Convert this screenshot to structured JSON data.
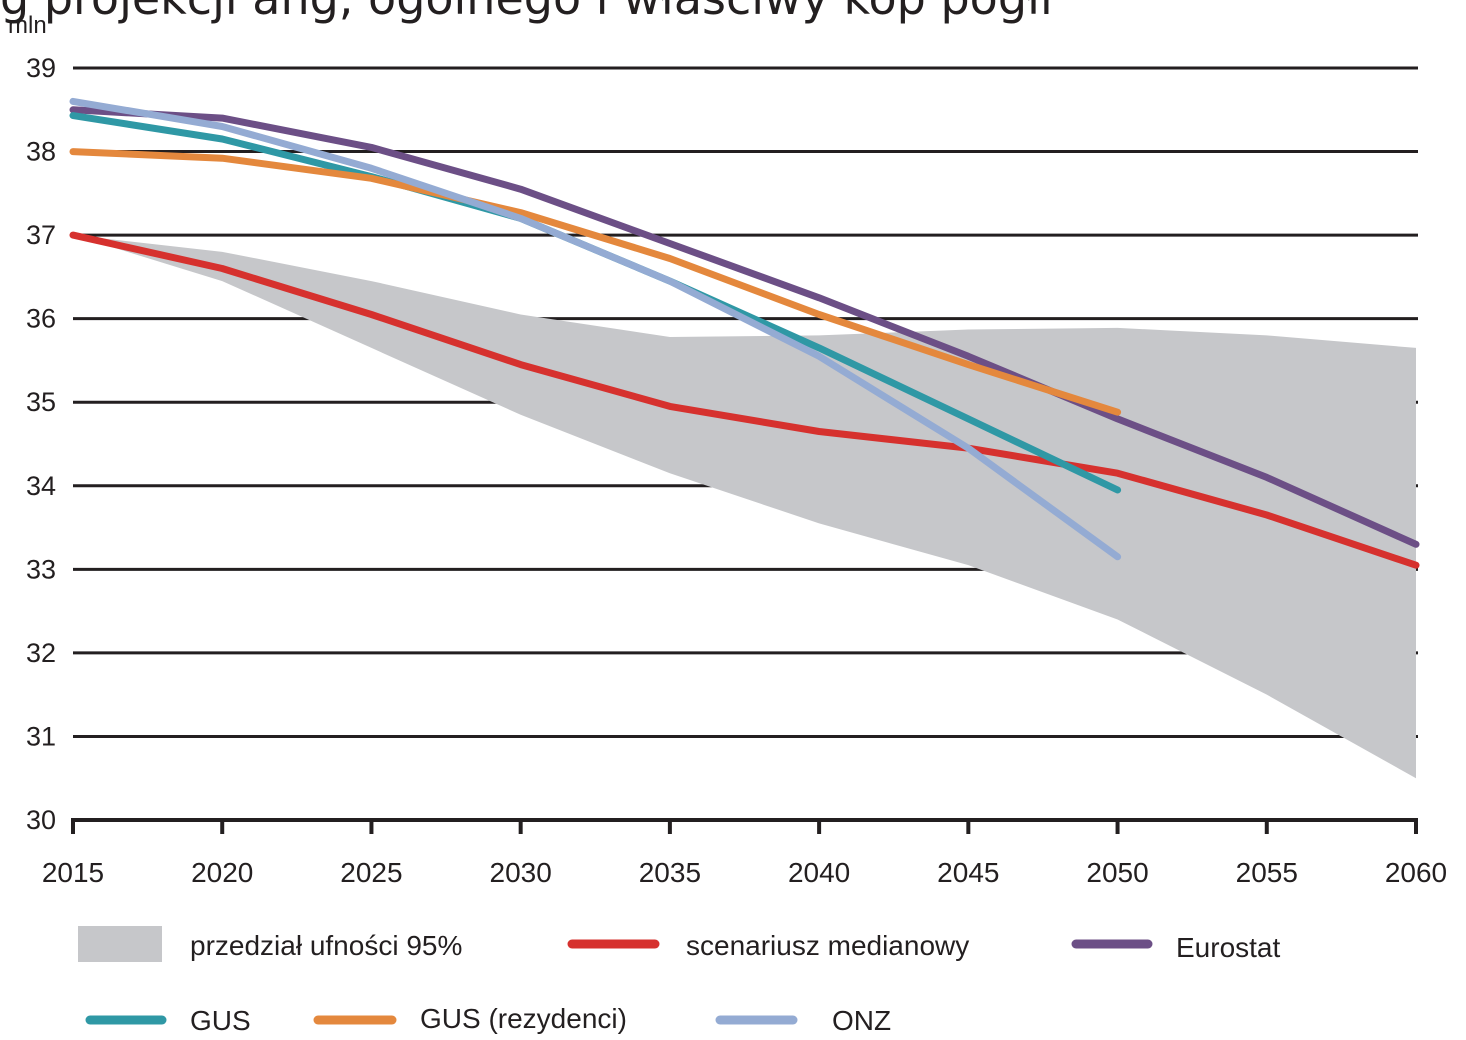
{
  "header_fragment": "g projekcji ang, ogólnego i właściwy kop pogłr",
  "chart_data": {
    "type": "line",
    "unit_label": "mln",
    "x": [
      2015,
      2020,
      2025,
      2030,
      2035,
      2040,
      2045,
      2050,
      2055,
      2060
    ],
    "x_tick_labels": [
      "2015",
      "2020",
      "2025",
      "2030",
      "2035",
      "2040",
      "2045",
      "2050",
      "2055",
      "2060"
    ],
    "ylim": [
      30,
      39
    ],
    "y_ticks": [
      30,
      31,
      32,
      33,
      34,
      35,
      36,
      37,
      38,
      39
    ],
    "y_tick_labels": [
      "30",
      "31",
      "32",
      "33",
      "34",
      "35",
      "36",
      "37",
      "38",
      "39"
    ],
    "grid": true,
    "legend_position": "bottom",
    "band": {
      "name": "przedział ufności 95%",
      "color": "#c6c7ca",
      "x": [
        2015,
        2020,
        2025,
        2030,
        2035,
        2040,
        2045,
        2050,
        2055,
        2060
      ],
      "upper": [
        37.0,
        36.8,
        36.45,
        36.05,
        35.78,
        35.8,
        35.87,
        35.89,
        35.8,
        35.65
      ],
      "lower": [
        37.0,
        36.45,
        35.65,
        34.85,
        34.15,
        33.55,
        33.05,
        32.4,
        31.5,
        30.5
      ]
    },
    "series": [
      {
        "name": "scenariusz medianowy",
        "color": "#d6312e",
        "x": [
          2015,
          2020,
          2025,
          2030,
          2035,
          2040,
          2045,
          2050,
          2055,
          2060
        ],
        "values": [
          37.0,
          36.6,
          36.05,
          35.45,
          34.95,
          34.65,
          34.45,
          34.15,
          33.65,
          33.05
        ]
      },
      {
        "name": "Eurostat",
        "color": "#6c4f86",
        "x": [
          2015,
          2020,
          2025,
          2030,
          2035,
          2040,
          2045,
          2050,
          2055,
          2060
        ],
        "values": [
          38.5,
          38.4,
          38.05,
          37.55,
          36.9,
          36.25,
          35.55,
          34.8,
          34.1,
          33.3
        ]
      },
      {
        "name": "GUS",
        "color": "#2f98a5",
        "x": [
          2015,
          2020,
          2025,
          2030,
          2035,
          2040,
          2045,
          2050
        ],
        "values": [
          38.43,
          38.15,
          37.7,
          37.2,
          36.45,
          35.65,
          34.8,
          33.95
        ]
      },
      {
        "name": "GUS (rezydenci)",
        "color": "#e4883d",
        "x": [
          2015,
          2020,
          2025,
          2030,
          2035,
          2040,
          2045,
          2050
        ],
        "values": [
          38.0,
          37.92,
          37.68,
          37.27,
          36.72,
          36.05,
          35.45,
          34.88
        ]
      },
      {
        "name": "ONZ",
        "color": "#94abd3",
        "x": [
          2015,
          2020,
          2025,
          2030,
          2035,
          2040,
          2045,
          2050
        ],
        "values": [
          38.6,
          38.3,
          37.8,
          37.2,
          36.45,
          35.55,
          34.45,
          33.15
        ]
      }
    ]
  }
}
